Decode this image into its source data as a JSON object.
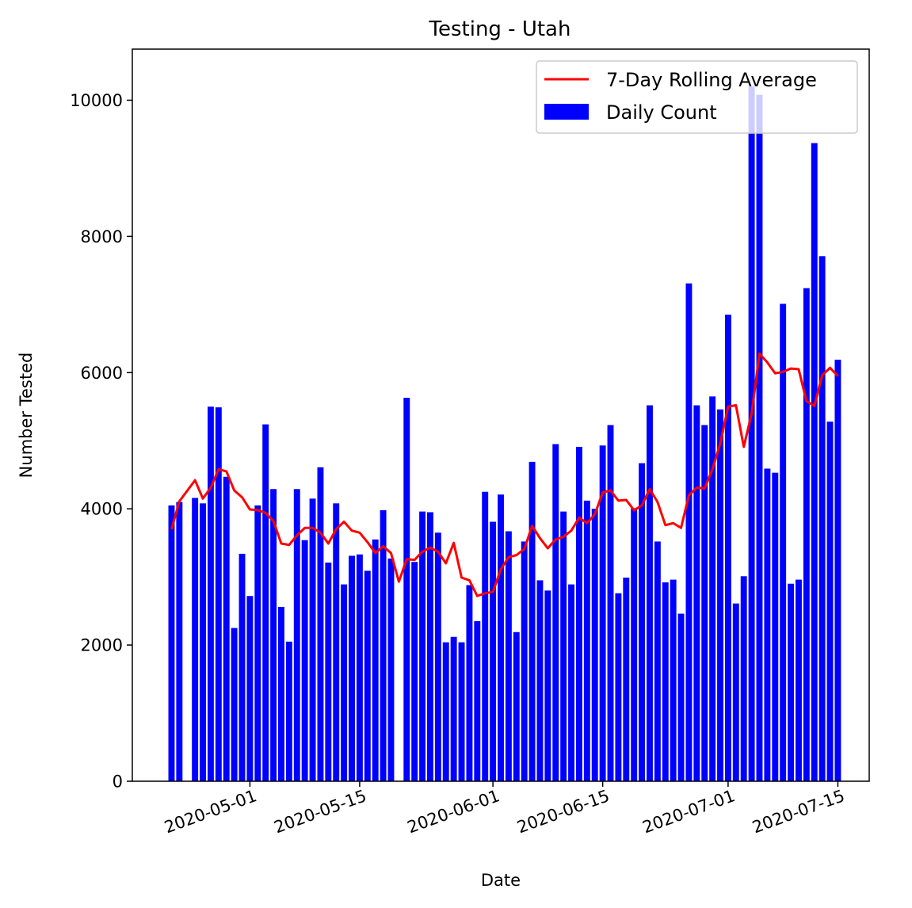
{
  "chart_data": {
    "type": "bar",
    "title": "Testing - Utah",
    "xlabel": "Date",
    "ylabel": "Number Tested",
    "ylim": [
      0,
      10750
    ],
    "xlim": [
      "2020-04-16",
      "2020-07-19"
    ],
    "x_ticks": [
      "2020-05-01",
      "2020-05-15",
      "2020-06-01",
      "2020-06-15",
      "2020-07-01",
      "2020-07-15"
    ],
    "y_ticks": [
      0,
      2000,
      4000,
      6000,
      8000,
      10000
    ],
    "grid": false,
    "legend_position": "top-right",
    "series": [
      {
        "name": "Daily Count",
        "kind": "bar",
        "color": "#0000ff",
        "x": [
          "2020-04-21",
          "2020-04-22",
          "2020-04-24",
          "2020-04-25",
          "2020-04-26",
          "2020-04-27",
          "2020-04-28",
          "2020-04-29",
          "2020-04-30",
          "2020-05-01",
          "2020-05-02",
          "2020-05-03",
          "2020-05-04",
          "2020-05-05",
          "2020-05-06",
          "2020-05-07",
          "2020-05-08",
          "2020-05-09",
          "2020-05-10",
          "2020-05-11",
          "2020-05-12",
          "2020-05-13",
          "2020-05-14",
          "2020-05-15",
          "2020-05-16",
          "2020-05-17",
          "2020-05-18",
          "2020-05-19",
          "2020-05-21",
          "2020-05-22",
          "2020-05-23",
          "2020-05-24",
          "2020-05-25",
          "2020-05-26",
          "2020-05-27",
          "2020-05-28",
          "2020-05-29",
          "2020-05-30",
          "2020-05-31",
          "2020-06-01",
          "2020-06-02",
          "2020-06-03",
          "2020-06-04",
          "2020-06-05",
          "2020-06-06",
          "2020-06-07",
          "2020-06-08",
          "2020-06-09",
          "2020-06-10",
          "2020-06-11",
          "2020-06-12",
          "2020-06-13",
          "2020-06-14",
          "2020-06-15",
          "2020-06-16",
          "2020-06-17",
          "2020-06-18",
          "2020-06-19",
          "2020-06-20",
          "2020-06-21",
          "2020-06-22",
          "2020-06-23",
          "2020-06-24",
          "2020-06-25",
          "2020-06-26",
          "2020-06-27",
          "2020-06-28",
          "2020-06-29",
          "2020-06-30",
          "2020-07-01",
          "2020-07-02",
          "2020-07-03",
          "2020-07-04",
          "2020-07-05",
          "2020-07-06",
          "2020-07-07",
          "2020-07-08",
          "2020-07-09",
          "2020-07-10",
          "2020-07-11",
          "2020-07-12",
          "2020-07-13",
          "2020-07-14",
          "2020-07-15"
        ],
        "values": [
          4050,
          4100,
          4160,
          4080,
          5500,
          5490,
          4470,
          2250,
          3340,
          2720,
          4050,
          5240,
          4290,
          2560,
          2050,
          4290,
          3540,
          4150,
          4610,
          3210,
          4080,
          2890,
          3310,
          3330,
          3090,
          3550,
          3980,
          3270,
          5630,
          3220,
          3960,
          3950,
          3650,
          2040,
          2120,
          2040,
          2880,
          2350,
          4250,
          3810,
          4210,
          3670,
          2190,
          3520,
          4690,
          2950,
          2800,
          4950,
          3960,
          2890,
          4910,
          4120,
          4000,
          4930,
          5230,
          2760,
          2990,
          4010,
          4670,
          5520,
          3520,
          2920,
          2960,
          2460,
          7310,
          5520,
          5230,
          5650,
          5460,
          6850,
          2610,
          3010,
          10200,
          10080,
          4590,
          4530,
          7010,
          2900,
          2960,
          7240,
          9370,
          7710,
          5280,
          6190
        ]
      },
      {
        "name": "7-Day Rolling Average",
        "kind": "line",
        "color": "#ff0000",
        "x": [
          "2020-04-21",
          "2020-04-22",
          "2020-04-24",
          "2020-04-25",
          "2020-04-26",
          "2020-04-27",
          "2020-04-28",
          "2020-04-29",
          "2020-04-30",
          "2020-05-01",
          "2020-05-02",
          "2020-05-03",
          "2020-05-04",
          "2020-05-05",
          "2020-05-06",
          "2020-05-07",
          "2020-05-08",
          "2020-05-09",
          "2020-05-10",
          "2020-05-11",
          "2020-05-12",
          "2020-05-13",
          "2020-05-14",
          "2020-05-15",
          "2020-05-16",
          "2020-05-17",
          "2020-05-18",
          "2020-05-19",
          "2020-05-20",
          "2020-05-21",
          "2020-05-22",
          "2020-05-23",
          "2020-05-24",
          "2020-05-25",
          "2020-05-26",
          "2020-05-27",
          "2020-05-28",
          "2020-05-29",
          "2020-05-30",
          "2020-05-31",
          "2020-06-01",
          "2020-06-02",
          "2020-06-03",
          "2020-06-04",
          "2020-06-05",
          "2020-06-06",
          "2020-06-07",
          "2020-06-08",
          "2020-06-09",
          "2020-06-10",
          "2020-06-11",
          "2020-06-12",
          "2020-06-13",
          "2020-06-14",
          "2020-06-15",
          "2020-06-16",
          "2020-06-17",
          "2020-06-18",
          "2020-06-19",
          "2020-06-20",
          "2020-06-21",
          "2020-06-22",
          "2020-06-23",
          "2020-06-24",
          "2020-06-25",
          "2020-06-26",
          "2020-06-27",
          "2020-06-28",
          "2020-06-29",
          "2020-06-30",
          "2020-07-01",
          "2020-07-02",
          "2020-07-03",
          "2020-07-04",
          "2020-07-05",
          "2020-07-06",
          "2020-07-07",
          "2020-07-08",
          "2020-07-09",
          "2020-07-10",
          "2020-07-11",
          "2020-07-12",
          "2020-07-13",
          "2020-07-14",
          "2020-07-15"
        ],
        "values": [
          3700,
          4110,
          4420,
          4150,
          4310,
          4580,
          4550,
          4270,
          4170,
          3990,
          3980,
          3940,
          3820,
          3490,
          3470,
          3610,
          3720,
          3720,
          3650,
          3490,
          3700,
          3810,
          3680,
          3650,
          3510,
          3350,
          3450,
          3350,
          2930,
          3260,
          3250,
          3370,
          3430,
          3370,
          3200,
          3500,
          2990,
          2950,
          2720,
          2760,
          2780,
          3110,
          3290,
          3320,
          3410,
          3750,
          3570,
          3420,
          3550,
          3590,
          3680,
          3870,
          3790,
          3920,
          4240,
          4270,
          4120,
          4130,
          3980,
          4050,
          4290,
          4100,
          3760,
          3790,
          3720,
          4200,
          4310,
          4300,
          4580,
          4960,
          5500,
          5520,
          4910,
          5400,
          6280,
          6150,
          5990,
          6010,
          6060,
          6050,
          5580,
          5510,
          5960,
          6070,
          5950
        ]
      }
    ],
    "legend": [
      "7-Day Rolling Average",
      "Daily Count"
    ]
  }
}
